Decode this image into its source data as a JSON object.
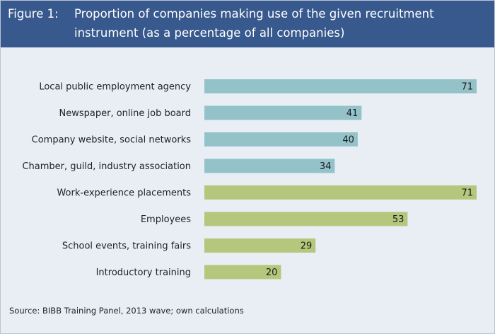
{
  "figure": {
    "label": "Figure 1:",
    "title_line1": "Proportion of companies making use of the given recruitment",
    "title_line2": "instrument (as a percentage of all companies)",
    "source": "Source: BIBB Training Panel, 2013 wave; own calculations"
  },
  "colors": {
    "header_bg": "#37598d",
    "panel_bg": "#e9eef5",
    "group_blue": "#94c2c9",
    "group_green": "#b5c77c"
  },
  "chart_data": {
    "type": "bar",
    "orientation": "horizontal",
    "categories": [
      "Local public employment agency",
      "Newspaper, online job board",
      "Company website, social networks",
      "Chamber, guild, industry association",
      "Work-experience placements",
      "Employees",
      "School events, training fairs",
      "Introductory training"
    ],
    "values": [
      71,
      41,
      40,
      34,
      71,
      53,
      29,
      20
    ],
    "bar_colors": [
      "#94c2c9",
      "#94c2c9",
      "#94c2c9",
      "#94c2c9",
      "#b5c77c",
      "#b5c77c",
      "#b5c77c",
      "#b5c77c"
    ],
    "data_labels": [
      "71",
      "41",
      "40",
      "34",
      "71",
      "53",
      "29",
      "20"
    ],
    "xlim": [
      0,
      71
    ],
    "grid": false,
    "legend": "none"
  }
}
